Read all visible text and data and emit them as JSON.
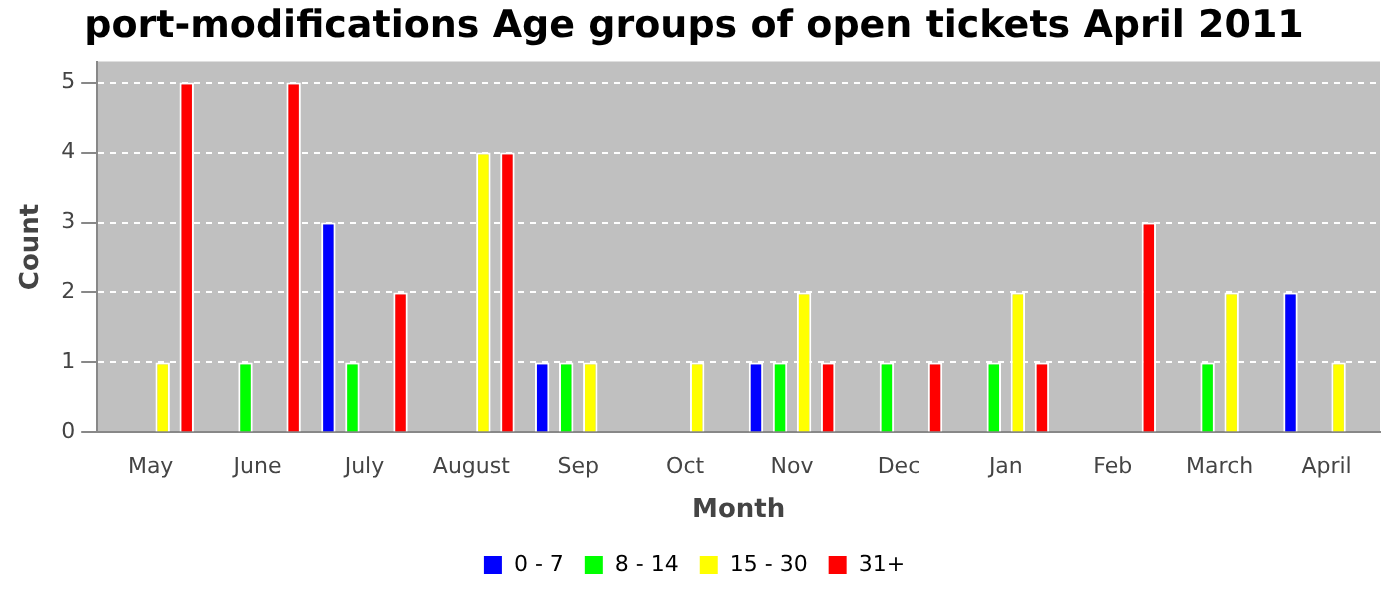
{
  "chart_data": {
    "type": "bar",
    "title": "port-modifications Age groups of open tickets April 2011",
    "xlabel": "Month",
    "ylabel": "Count",
    "categories": [
      "May",
      "June",
      "July",
      "August",
      "Sep",
      "Oct",
      "Nov",
      "Dec",
      "Jan",
      "Feb",
      "March",
      "April"
    ],
    "series": [
      {
        "name": "0 - 7",
        "color": "#0000ff",
        "values": [
          0,
          0,
          3,
          0,
          1,
          0,
          1,
          0,
          0,
          0,
          0,
          2
        ]
      },
      {
        "name": "8 - 14",
        "color": "#00ff00",
        "values": [
          0,
          1,
          1,
          0,
          1,
          0,
          1,
          1,
          1,
          0,
          1,
          0
        ]
      },
      {
        "name": "15 - 30",
        "color": "#ffff00",
        "values": [
          1,
          0,
          0,
          4,
          1,
          1,
          2,
          0,
          2,
          0,
          2,
          1
        ]
      },
      {
        "name": "31+",
        "color": "#ff0000",
        "values": [
          5,
          5,
          2,
          4,
          0,
          0,
          1,
          1,
          1,
          3,
          0,
          0
        ]
      }
    ],
    "ylim": [
      0,
      5.3
    ],
    "yticks": [
      0,
      1,
      2,
      3,
      4,
      5
    ],
    "grid": "y",
    "legend": "bottom"
  }
}
